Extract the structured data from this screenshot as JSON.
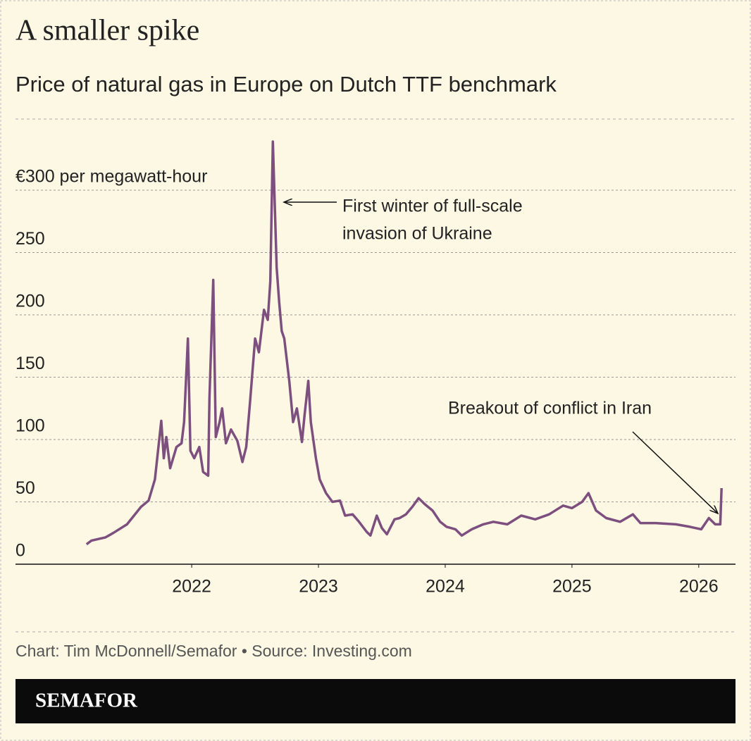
{
  "chart_data": {
    "type": "line",
    "title": "A smaller spike",
    "subtitle": "Price of natural gas in Europe on Dutch TTF benchmark",
    "x": [
      2021.17,
      2021.21,
      2021.32,
      2021.38,
      2021.49,
      2021.6,
      2021.66,
      2021.71,
      2021.76,
      2021.78,
      2021.8,
      2021.83,
      2021.88,
      2021.92,
      2021.94,
      2021.97,
      2021.99,
      2022.02,
      2022.06,
      2022.09,
      2022.13,
      2022.14,
      2022.17,
      2022.19,
      2022.22,
      2022.24,
      2022.27,
      2022.31,
      2022.36,
      2022.4,
      2022.43,
      2022.46,
      2022.5,
      2022.53,
      2022.57,
      2022.6,
      2022.62,
      2022.64,
      2022.67,
      2022.69,
      2022.71,
      2022.73,
      2022.77,
      2022.8,
      2022.83,
      2022.87,
      2022.89,
      2022.92,
      2022.94,
      2022.98,
      2023.01,
      2023.06,
      2023.11,
      2023.17,
      2023.21,
      2023.27,
      2023.32,
      2023.38,
      2023.41,
      2023.46,
      2023.5,
      2023.54,
      2023.6,
      2023.64,
      2023.69,
      2023.74,
      2023.79,
      2023.84,
      2023.9,
      2023.96,
      2024.01,
      2024.08,
      2024.13,
      2024.21,
      2024.3,
      2024.38,
      2024.49,
      2024.6,
      2024.71,
      2024.82,
      2024.93,
      2025.0,
      2025.08,
      2025.13,
      2025.19,
      2025.27,
      2025.38,
      2025.48,
      2025.54,
      2025.66,
      2025.82,
      2025.93,
      2026.02,
      2026.08,
      2026.13,
      2026.17,
      2026.18
    ],
    "values": [
      16,
      19,
      21.5,
      25,
      32,
      46,
      51,
      68,
      115,
      85,
      102,
      77,
      94,
      97,
      114,
      181,
      91,
      85,
      94,
      74,
      71,
      133,
      228,
      102,
      114,
      125,
      97,
      108,
      99,
      82,
      94,
      130,
      181,
      170,
      204,
      196,
      227,
      339,
      238,
      210,
      187,
      181,
      147,
      114,
      125,
      98,
      119,
      147,
      114,
      85,
      68,
      57,
      50,
      51,
      39,
      40,
      34,
      26,
      23,
      39,
      29,
      24,
      36,
      37,
      40,
      46,
      53,
      48,
      43,
      34,
      30,
      28,
      23,
      28,
      32,
      34,
      32,
      39,
      36,
      40,
      47,
      45,
      50,
      57,
      43,
      37,
      34,
      40,
      33,
      33,
      32,
      30,
      28,
      37,
      32,
      32,
      61
    ],
    "color": "#7d4f7f",
    "xlim": [
      2020.61,
      2026.29
    ],
    "xticks": [
      2022,
      2023,
      2024,
      2025,
      2026
    ],
    "ylim": [
      0,
      350
    ],
    "yticks": [
      0,
      50,
      100,
      150,
      200,
      250,
      {
        "value": 300,
        "label": "€300 per megawatt-hour"
      }
    ],
    "grid": true,
    "annotations": [
      [
        "First winter of full-scale",
        "invasion of Ukraine"
      ],
      [
        "Breakout of conflict in Iran"
      ]
    ],
    "source": "Chart: Tim McDonnell/Semafor • Source: Investing.com",
    "brand": "SEMAFOR"
  }
}
